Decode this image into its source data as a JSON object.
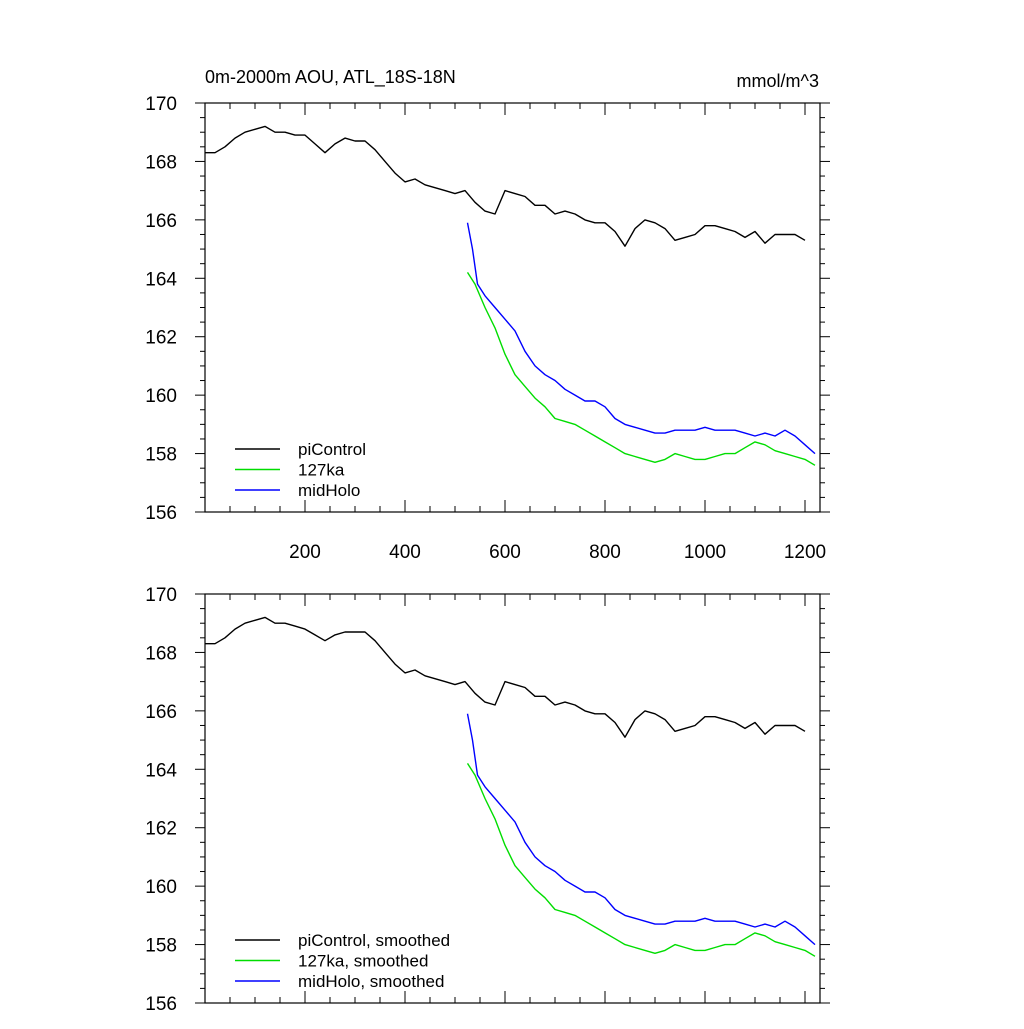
{
  "title": "0m-2000m AOU, ATL_18S-18N",
  "units": "mmol/m^3",
  "colors": {
    "piControl": "#000000",
    "127ka": "#00dd00",
    "midHolo": "#0000ff"
  },
  "chart_data": [
    {
      "type": "line",
      "panel": "top",
      "xlim": [
        0,
        1230
      ],
      "ylim": [
        156,
        170
      ],
      "xticks": [
        200,
        400,
        600,
        800,
        1000,
        1200
      ],
      "yticks": [
        156,
        158,
        160,
        162,
        164,
        166,
        168,
        170
      ],
      "xtick_labels": [
        "200",
        "400",
        "600",
        "800",
        "1000",
        "1200"
      ],
      "ytick_labels": [
        "156",
        "158",
        "160",
        "162",
        "164",
        "166",
        "168",
        "170"
      ],
      "legend_position": "bottom-left",
      "series": [
        {
          "name": "piControl",
          "key": "piControl",
          "x": [
            0,
            20,
            40,
            60,
            80,
            100,
            120,
            140,
            160,
            180,
            200,
            220,
            240,
            260,
            280,
            300,
            320,
            340,
            360,
            380,
            400,
            420,
            440,
            460,
            480,
            500,
            520,
            540,
            560,
            580,
            600,
            620,
            640,
            660,
            680,
            700,
            720,
            740,
            760,
            780,
            800,
            820,
            840,
            860,
            880,
            900,
            920,
            940,
            960,
            980,
            1000,
            1020,
            1040,
            1060,
            1080,
            1100,
            1120,
            1140,
            1160,
            1180,
            1200
          ],
          "y": [
            168.3,
            168.3,
            168.5,
            168.8,
            169.0,
            169.1,
            169.2,
            169.0,
            169.0,
            168.9,
            168.9,
            168.6,
            168.3,
            168.6,
            168.8,
            168.7,
            168.7,
            168.4,
            168.0,
            167.6,
            167.3,
            167.4,
            167.2,
            167.1,
            167.0,
            166.9,
            167.0,
            166.6,
            166.3,
            166.2,
            167.0,
            166.9,
            166.8,
            166.5,
            166.5,
            166.2,
            166.3,
            166.2,
            166.0,
            165.9,
            165.9,
            165.6,
            165.1,
            165.7,
            166.0,
            165.9,
            165.7,
            165.3,
            165.4,
            165.5,
            165.8,
            165.8,
            165.7,
            165.6,
            165.4,
            165.6,
            165.2,
            165.5,
            165.5,
            165.5,
            165.3
          ]
        },
        {
          "name": "127ka",
          "key": "127ka",
          "x": [
            525,
            540,
            560,
            580,
            600,
            620,
            640,
            660,
            680,
            700,
            720,
            740,
            760,
            780,
            800,
            820,
            840,
            860,
            880,
            900,
            920,
            940,
            960,
            980,
            1000,
            1020,
            1040,
            1060,
            1080,
            1100,
            1120,
            1140,
            1160,
            1180,
            1200,
            1220
          ],
          "y": [
            164.2,
            163.8,
            163.0,
            162.3,
            161.4,
            160.7,
            160.3,
            159.9,
            159.6,
            159.2,
            159.1,
            159.0,
            158.8,
            158.6,
            158.4,
            158.2,
            158.0,
            157.9,
            157.8,
            157.7,
            157.8,
            158.0,
            157.9,
            157.8,
            157.8,
            157.9,
            158.0,
            158.0,
            158.2,
            158.4,
            158.3,
            158.1,
            158.0,
            157.9,
            157.8,
            157.6
          ]
        },
        {
          "name": "midHolo",
          "key": "midHolo",
          "x": [
            525,
            535,
            545,
            560,
            580,
            600,
            620,
            640,
            660,
            680,
            700,
            720,
            740,
            760,
            780,
            800,
            820,
            840,
            860,
            880,
            900,
            920,
            940,
            960,
            980,
            1000,
            1020,
            1040,
            1060,
            1080,
            1100,
            1120,
            1140,
            1160,
            1180,
            1200,
            1220
          ],
          "y": [
            165.9,
            165.0,
            163.8,
            163.4,
            163.0,
            162.6,
            162.2,
            161.5,
            161.0,
            160.7,
            160.5,
            160.2,
            160.0,
            159.8,
            159.8,
            159.6,
            159.2,
            159.0,
            158.9,
            158.8,
            158.7,
            158.7,
            158.8,
            158.8,
            158.8,
            158.9,
            158.8,
            158.8,
            158.8,
            158.7,
            158.6,
            158.7,
            158.6,
            158.8,
            158.6,
            158.3,
            158.0
          ]
        }
      ]
    },
    {
      "type": "line",
      "panel": "bottom",
      "xlim": [
        0,
        1230
      ],
      "ylim": [
        156,
        170
      ],
      "xticks": [
        200,
        400,
        600,
        800,
        1000,
        1200
      ],
      "yticks": [
        156,
        158,
        160,
        162,
        164,
        166,
        168,
        170
      ],
      "ytick_labels": [
        "156",
        "158",
        "160",
        "162",
        "164",
        "166",
        "168",
        "170"
      ],
      "legend_position": "bottom-left",
      "series": [
        {
          "name": "piControl, smoothed",
          "key": "piControl",
          "x": [
            0,
            20,
            40,
            60,
            80,
            100,
            120,
            140,
            160,
            180,
            200,
            220,
            240,
            260,
            280,
            300,
            320,
            340,
            360,
            380,
            400,
            420,
            440,
            460,
            480,
            500,
            520,
            540,
            560,
            580,
            600,
            620,
            640,
            660,
            680,
            700,
            720,
            740,
            760,
            780,
            800,
            820,
            840,
            860,
            880,
            900,
            920,
            940,
            960,
            980,
            1000,
            1020,
            1040,
            1060,
            1080,
            1100,
            1120,
            1140,
            1160,
            1180,
            1200
          ],
          "y": [
            168.3,
            168.3,
            168.5,
            168.8,
            169.0,
            169.1,
            169.2,
            169.0,
            169.0,
            168.9,
            168.8,
            168.6,
            168.4,
            168.6,
            168.7,
            168.7,
            168.7,
            168.4,
            168.0,
            167.6,
            167.3,
            167.4,
            167.2,
            167.1,
            167.0,
            166.9,
            167.0,
            166.6,
            166.3,
            166.2,
            167.0,
            166.9,
            166.8,
            166.5,
            166.5,
            166.2,
            166.3,
            166.2,
            166.0,
            165.9,
            165.9,
            165.6,
            165.1,
            165.7,
            166.0,
            165.9,
            165.7,
            165.3,
            165.4,
            165.5,
            165.8,
            165.8,
            165.7,
            165.6,
            165.4,
            165.6,
            165.2,
            165.5,
            165.5,
            165.5,
            165.3
          ]
        },
        {
          "name": "127ka, smoothed",
          "key": "127ka",
          "x": [
            525,
            540,
            560,
            580,
            600,
            620,
            640,
            660,
            680,
            700,
            720,
            740,
            760,
            780,
            800,
            820,
            840,
            860,
            880,
            900,
            920,
            940,
            960,
            980,
            1000,
            1020,
            1040,
            1060,
            1080,
            1100,
            1120,
            1140,
            1160,
            1180,
            1200,
            1220
          ],
          "y": [
            164.2,
            163.8,
            163.0,
            162.3,
            161.4,
            160.7,
            160.3,
            159.9,
            159.6,
            159.2,
            159.1,
            159.0,
            158.8,
            158.6,
            158.4,
            158.2,
            158.0,
            157.9,
            157.8,
            157.7,
            157.8,
            158.0,
            157.9,
            157.8,
            157.8,
            157.9,
            158.0,
            158.0,
            158.2,
            158.4,
            158.3,
            158.1,
            158.0,
            157.9,
            157.8,
            157.6
          ]
        },
        {
          "name": "midHolo, smoothed",
          "key": "midHolo",
          "x": [
            525,
            535,
            545,
            560,
            580,
            600,
            620,
            640,
            660,
            680,
            700,
            720,
            740,
            760,
            780,
            800,
            820,
            840,
            860,
            880,
            900,
            920,
            940,
            960,
            980,
            1000,
            1020,
            1040,
            1060,
            1080,
            1100,
            1120,
            1140,
            1160,
            1180,
            1200,
            1220
          ],
          "y": [
            165.9,
            165.0,
            163.8,
            163.4,
            163.0,
            162.6,
            162.2,
            161.5,
            161.0,
            160.7,
            160.5,
            160.2,
            160.0,
            159.8,
            159.8,
            159.6,
            159.2,
            159.0,
            158.9,
            158.8,
            158.7,
            158.7,
            158.8,
            158.8,
            158.8,
            158.9,
            158.8,
            158.8,
            158.8,
            158.7,
            158.6,
            158.7,
            158.6,
            158.8,
            158.6,
            158.3,
            158.0
          ]
        }
      ]
    }
  ]
}
